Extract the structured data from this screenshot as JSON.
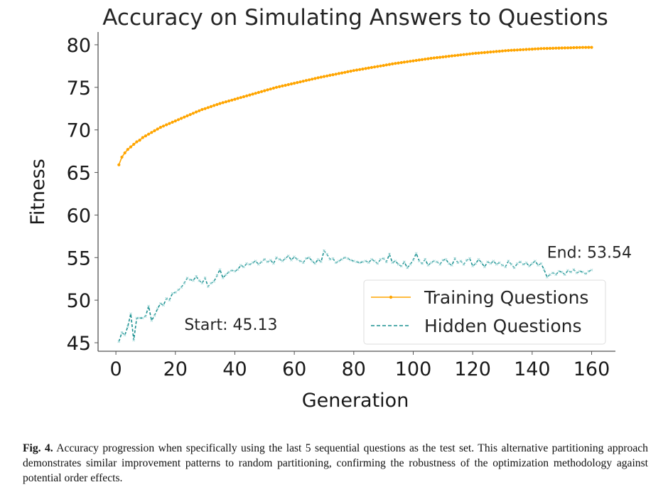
{
  "chart_data": {
    "type": "line",
    "title": "Accuracy on Simulating Answers to Questions",
    "xlabel": "Generation",
    "ylabel": "Fitness",
    "xlim": [
      -6,
      168
    ],
    "ylim": [
      44,
      81.5
    ],
    "xticks": [
      0,
      20,
      40,
      60,
      80,
      100,
      120,
      140,
      160
    ],
    "yticks": [
      45,
      50,
      55,
      60,
      65,
      70,
      75,
      80
    ],
    "grid": false,
    "legend_position": "lower-right",
    "series": [
      {
        "name": "Training Questions",
        "color": "#FFA500",
        "style": "solid-with-dot-markers",
        "x_start": 1,
        "x_end": 160,
        "start_value": 65.9,
        "end_value": 79.7,
        "values": [
          65.9,
          66.8,
          67.3,
          67.7,
          68.0,
          68.3,
          68.6,
          68.8,
          69.1,
          69.3,
          69.5,
          69.7,
          69.9,
          70.1,
          70.3,
          70.45,
          70.6,
          70.75,
          70.9,
          71.05,
          71.2,
          71.35,
          71.5,
          71.65,
          71.8,
          71.95,
          72.1,
          72.25,
          72.4,
          72.5,
          72.62,
          72.74,
          72.86,
          72.98,
          73.1,
          73.2,
          73.3,
          73.4,
          73.5,
          73.6,
          73.7,
          73.8,
          73.9,
          74.0,
          74.1,
          74.2,
          74.3,
          74.4,
          74.5,
          74.6,
          74.7,
          74.8,
          74.9,
          75.0,
          75.08,
          75.16,
          75.24,
          75.32,
          75.4,
          75.48,
          75.56,
          75.64,
          75.72,
          75.8,
          75.88,
          75.96,
          76.04,
          76.12,
          76.2,
          76.27,
          76.34,
          76.41,
          76.48,
          76.55,
          76.62,
          76.69,
          76.76,
          76.83,
          76.9,
          76.97,
          77.03,
          77.09,
          77.15,
          77.21,
          77.27,
          77.33,
          77.39,
          77.45,
          77.51,
          77.57,
          77.63,
          77.69,
          77.75,
          77.81,
          77.86,
          77.91,
          77.96,
          78.01,
          78.06,
          78.11,
          78.16,
          78.21,
          78.26,
          78.31,
          78.36,
          78.41,
          78.45,
          78.49,
          78.53,
          78.57,
          78.61,
          78.65,
          78.69,
          78.73,
          78.77,
          78.81,
          78.85,
          78.89,
          78.93,
          78.97,
          79.0,
          79.03,
          79.06,
          79.09,
          79.12,
          79.15,
          79.18,
          79.21,
          79.24,
          79.27,
          79.3,
          79.33,
          79.35,
          79.37,
          79.39,
          79.41,
          79.43,
          79.45,
          79.47,
          79.49,
          79.51,
          79.53,
          79.55,
          79.56,
          79.57,
          79.58,
          79.59,
          79.6,
          79.61,
          79.62,
          79.63,
          79.64,
          79.65,
          79.66,
          79.67,
          79.68,
          79.69,
          79.69,
          79.7,
          79.7
        ]
      },
      {
        "name": "Hidden Questions",
        "color": "#1A9090",
        "style": "dashed-with-x-markers",
        "x_start": 1,
        "x_end": 160,
        "start_value": 45.13,
        "end_value": 53.54,
        "values": [
          45.13,
          46.2,
          45.9,
          46.9,
          48.4,
          45.3,
          47.9,
          47.9,
          47.9,
          48.1,
          49.3,
          47.6,
          48.2,
          49.0,
          49.6,
          49.4,
          50.2,
          50.0,
          50.8,
          50.9,
          51.2,
          51.5,
          52.0,
          52.6,
          52.4,
          52.3,
          52.8,
          52.3,
          52.0,
          52.6,
          51.6,
          52.0,
          52.2,
          52.9,
          53.6,
          52.6,
          53.0,
          53.3,
          53.5,
          53.4,
          53.6,
          54.1,
          53.9,
          54.3,
          54.2,
          54.4,
          54.6,
          54.2,
          54.5,
          54.8,
          54.5,
          54.7,
          54.3,
          55.0,
          54.8,
          54.6,
          54.9,
          55.2,
          54.7,
          55.1,
          54.8,
          54.6,
          54.4,
          54.9,
          55.0,
          54.6,
          54.3,
          54.8,
          54.5,
          55.8,
          55.4,
          54.8,
          54.9,
          54.4,
          54.6,
          54.8,
          55.0,
          54.9,
          54.7,
          54.6,
          54.5,
          54.4,
          54.5,
          54.6,
          54.4,
          54.8,
          54.6,
          54.3,
          54.8,
          54.9,
          54.5,
          55.4,
          54.4,
          54.6,
          54.2,
          54.0,
          54.5,
          53.8,
          54.2,
          54.7,
          55.5,
          54.6,
          54.3,
          54.8,
          54.1,
          54.4,
          54.6,
          54.5,
          54.2,
          54.7,
          54.8,
          54.3,
          54.1,
          54.9,
          54.4,
          54.6,
          54.2,
          54.7,
          54.9,
          54.0,
          54.3,
          54.8,
          54.4,
          53.9,
          54.5,
          54.3,
          54.6,
          54.2,
          54.4,
          54.1,
          53.9,
          54.6,
          54.2,
          53.8,
          54.3,
          54.5,
          54.2,
          54.4,
          54.0,
          54.3,
          54.6,
          54.1,
          54.3,
          53.6,
          52.7,
          53.0,
          53.2,
          53.0,
          53.4,
          53.3,
          53.0,
          53.5,
          53.3,
          53.6,
          53.2,
          53.4,
          53.3,
          53.1,
          53.4,
          53.54
        ]
      }
    ],
    "annotations": [
      {
        "text": "Start: 45.13",
        "x": 23,
        "y": 46.5
      },
      {
        "text": "End: 53.54",
        "x": 145,
        "y": 55.0
      }
    ]
  },
  "caption": {
    "label": "Fig. 4.",
    "text": "Accuracy progression when specifically using the last 5 sequential questions as the test set. This alternative partitioning approach demonstrates similar improvement patterns to random partitioning, confirming the robustness of the optimization methodology against potential order effects."
  }
}
